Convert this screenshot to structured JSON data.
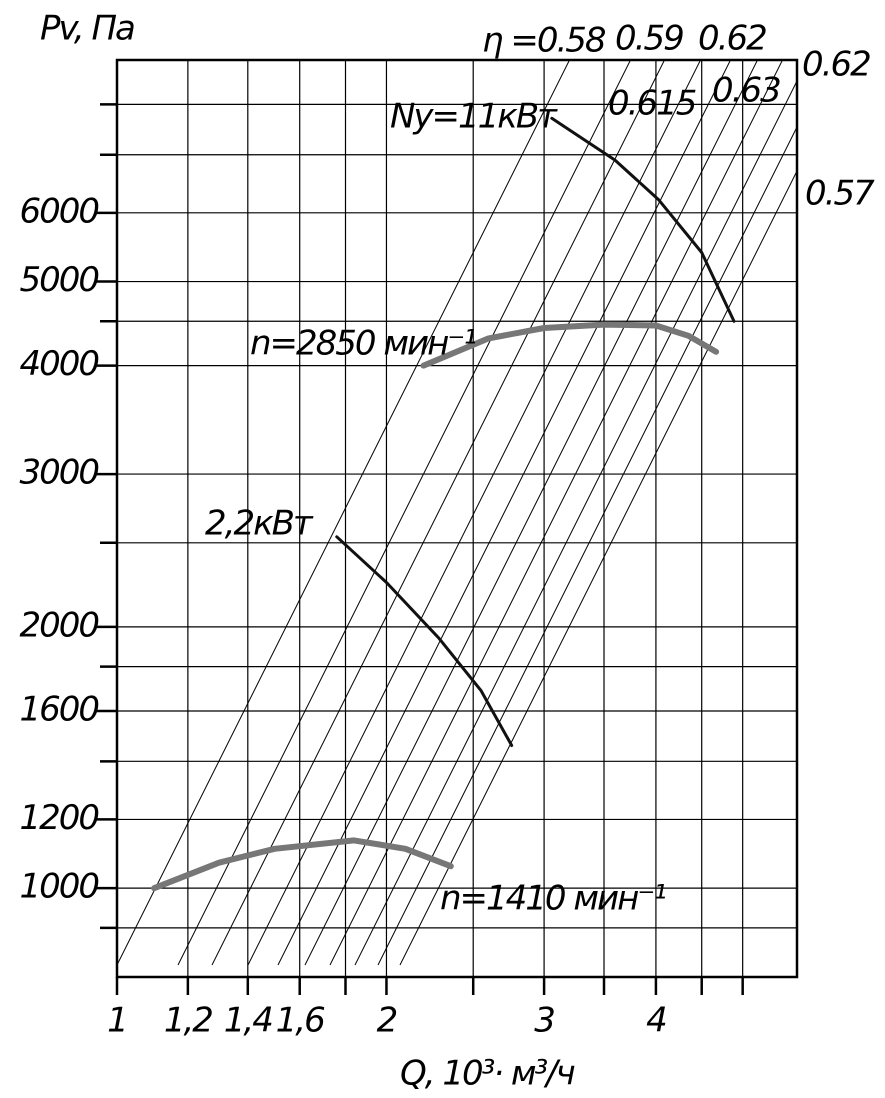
{
  "chart_data": {
    "type": "line",
    "log_x": true,
    "log_y": true,
    "grid": true,
    "y_label": "Pv, Па",
    "x_label": "Q, 10³· м³/ч",
    "xlim": [
      1,
      5.75
    ],
    "ylim": [
      790,
      9000
    ],
    "xticks": [
      1,
      {
        "value": 1.2,
        "label": "1,2"
      },
      {
        "value": 1.4,
        "label": "1,4"
      },
      {
        "value": 1.6,
        "label": "1,6"
      },
      2,
      3,
      4
    ],
    "xminor": [
      1.8,
      2.5,
      3.5,
      4.5,
      5
    ],
    "yticks": [
      1000,
      1200,
      1600,
      2000,
      3000,
      4000,
      5000,
      6000
    ],
    "yminor": [
      900,
      1400,
      1800,
      2500,
      4500,
      7000,
      8000
    ],
    "series": [
      {
        "name": "n=2850 мин⁻¹",
        "color": "#777777",
        "width": 6,
        "x": [
          2.2,
          2.6,
          3.0,
          3.5,
          4.0,
          4.35,
          4.67
        ],
        "values": [
          4000,
          4300,
          4420,
          4460,
          4450,
          4330,
          4150
        ]
      },
      {
        "name": "n=1410 мин⁻¹",
        "color": "#777777",
        "width": 6,
        "x": [
          1.1,
          1.3,
          1.5,
          1.84,
          2.1,
          2.36
        ],
        "values": [
          1000,
          1070,
          1110,
          1135,
          1110,
          1060
        ]
      },
      {
        "name": "Ny=11кВт",
        "color": "#111111",
        "width": 3,
        "x": [
          3.06,
          3.6,
          4.03,
          4.5,
          4.89
        ],
        "values": [
          7710,
          6900,
          6210,
          5400,
          4500
        ]
      },
      {
        "name": "2,2кВт",
        "color": "#111111",
        "width": 3,
        "x": [
          1.76,
          2.0,
          2.29,
          2.55,
          2.76
        ],
        "values": [
          2540,
          2250,
          1940,
          1690,
          1460
        ]
      }
    ],
    "annotations": [
      "η =0.58",
      "0.59",
      "0.62",
      "0.62",
      "0.615",
      "0.63",
      "0.57"
    ]
  }
}
